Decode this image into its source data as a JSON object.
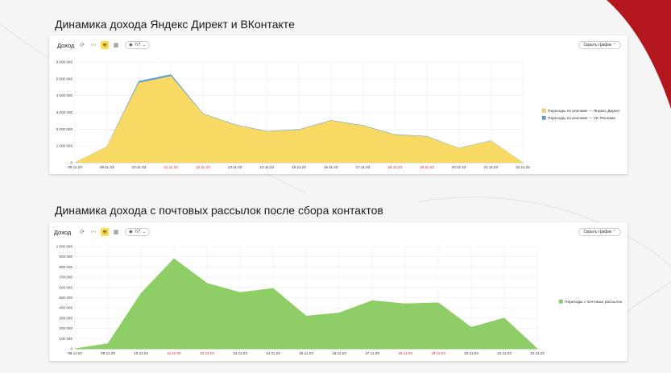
{
  "colors": {
    "yandex": "#f7d964",
    "vk": "#5b9bd8",
    "email": "#8fce67",
    "holiday": "#e02020",
    "corner": "#b3161c"
  },
  "chart1": {
    "title": "Динамика дохода Яндекс Директ и ВКонтакте",
    "toolbar": {
      "label": "Доход",
      "pill": "7/7",
      "hide": "Скрыть график"
    },
    "legend": [
      {
        "label": "Переходы по рекламе — Яндекс.Директ",
        "color": "#f7d964"
      },
      {
        "label": "Переходы по рекламе — VK Реклама",
        "color": "#5b9bd8"
      }
    ],
    "y_ticks": [
      "0",
      "1 000 000",
      "2 000 000",
      "3 000 000",
      "4 000 000",
      "5 000 000",
      "6 000 000"
    ]
  },
  "chart2": {
    "title": "Динамика дохода с почтовых рассылок после сбора контактов",
    "toolbar": {
      "label": "Доход",
      "pill": "7/7",
      "hide": "Скрыть график"
    },
    "legend": [
      {
        "label": "Переходы с почтовых рассылок",
        "color": "#8fce67"
      }
    ],
    "y_ticks": [
      "0",
      "100 000",
      "200 000",
      "300 000",
      "400 000",
      "500 000",
      "600 000",
      "700 000",
      "800 000",
      "900 000",
      "1 000 000"
    ]
  },
  "chart_data": [
    {
      "type": "area",
      "title": "Динамика дохода Яндекс Директ и ВКонтакте",
      "categories": [
        "08.11.23",
        "09.11.23",
        "10.11.23",
        "11.11.23",
        "12.11.23",
        "13.11.23",
        "14.11.23",
        "15.11.23",
        "16.11.23",
        "17.11.23",
        "18.11.23",
        "19.11.23",
        "20.11.23",
        "21.11.23",
        "22.11.23"
      ],
      "holidays": [
        false,
        false,
        false,
        true,
        true,
        false,
        false,
        false,
        false,
        false,
        true,
        true,
        false,
        false,
        false
      ],
      "stacked": true,
      "series": [
        {
          "name": "Переходы по рекламе — Яндекс.Директ",
          "values": [
            0,
            950000,
            4750000,
            5150000,
            2900000,
            2250000,
            1850000,
            1950000,
            2500000,
            2200000,
            1650000,
            1550000,
            850000,
            1300000,
            0
          ]
        },
        {
          "name": "Переходы по рекламе — VK Реклама",
          "values": [
            0,
            0,
            100000,
            100000,
            20000,
            20000,
            20000,
            20000,
            20000,
            20000,
            20000,
            20000,
            10000,
            10000,
            0
          ]
        }
      ],
      "ylim": [
        0,
        6000000
      ],
      "grid": true,
      "legend_position": "right"
    },
    {
      "type": "area",
      "title": "Динамика дохода с почтовых рассылок после сбора контактов",
      "categories": [
        "08.11.23",
        "09.11.23",
        "10.11.23",
        "11.11.23",
        "12.11.23",
        "13.11.23",
        "14.11.23",
        "15.11.23",
        "16.11.23",
        "17.11.23",
        "18.11.23",
        "19.11.23",
        "20.11.23",
        "21.11.23",
        "22.11.23"
      ],
      "holidays": [
        false,
        false,
        false,
        true,
        true,
        false,
        false,
        false,
        false,
        false,
        true,
        true,
        false,
        false,
        false
      ],
      "series": [
        {
          "name": "Переходы с почтовых рассылок",
          "values": [
            0,
            50000,
            540000,
            880000,
            640000,
            550000,
            590000,
            320000,
            350000,
            470000,
            440000,
            450000,
            210000,
            300000,
            0
          ]
        }
      ],
      "ylim": [
        0,
        1000000
      ],
      "grid": true,
      "legend_position": "right"
    }
  ]
}
